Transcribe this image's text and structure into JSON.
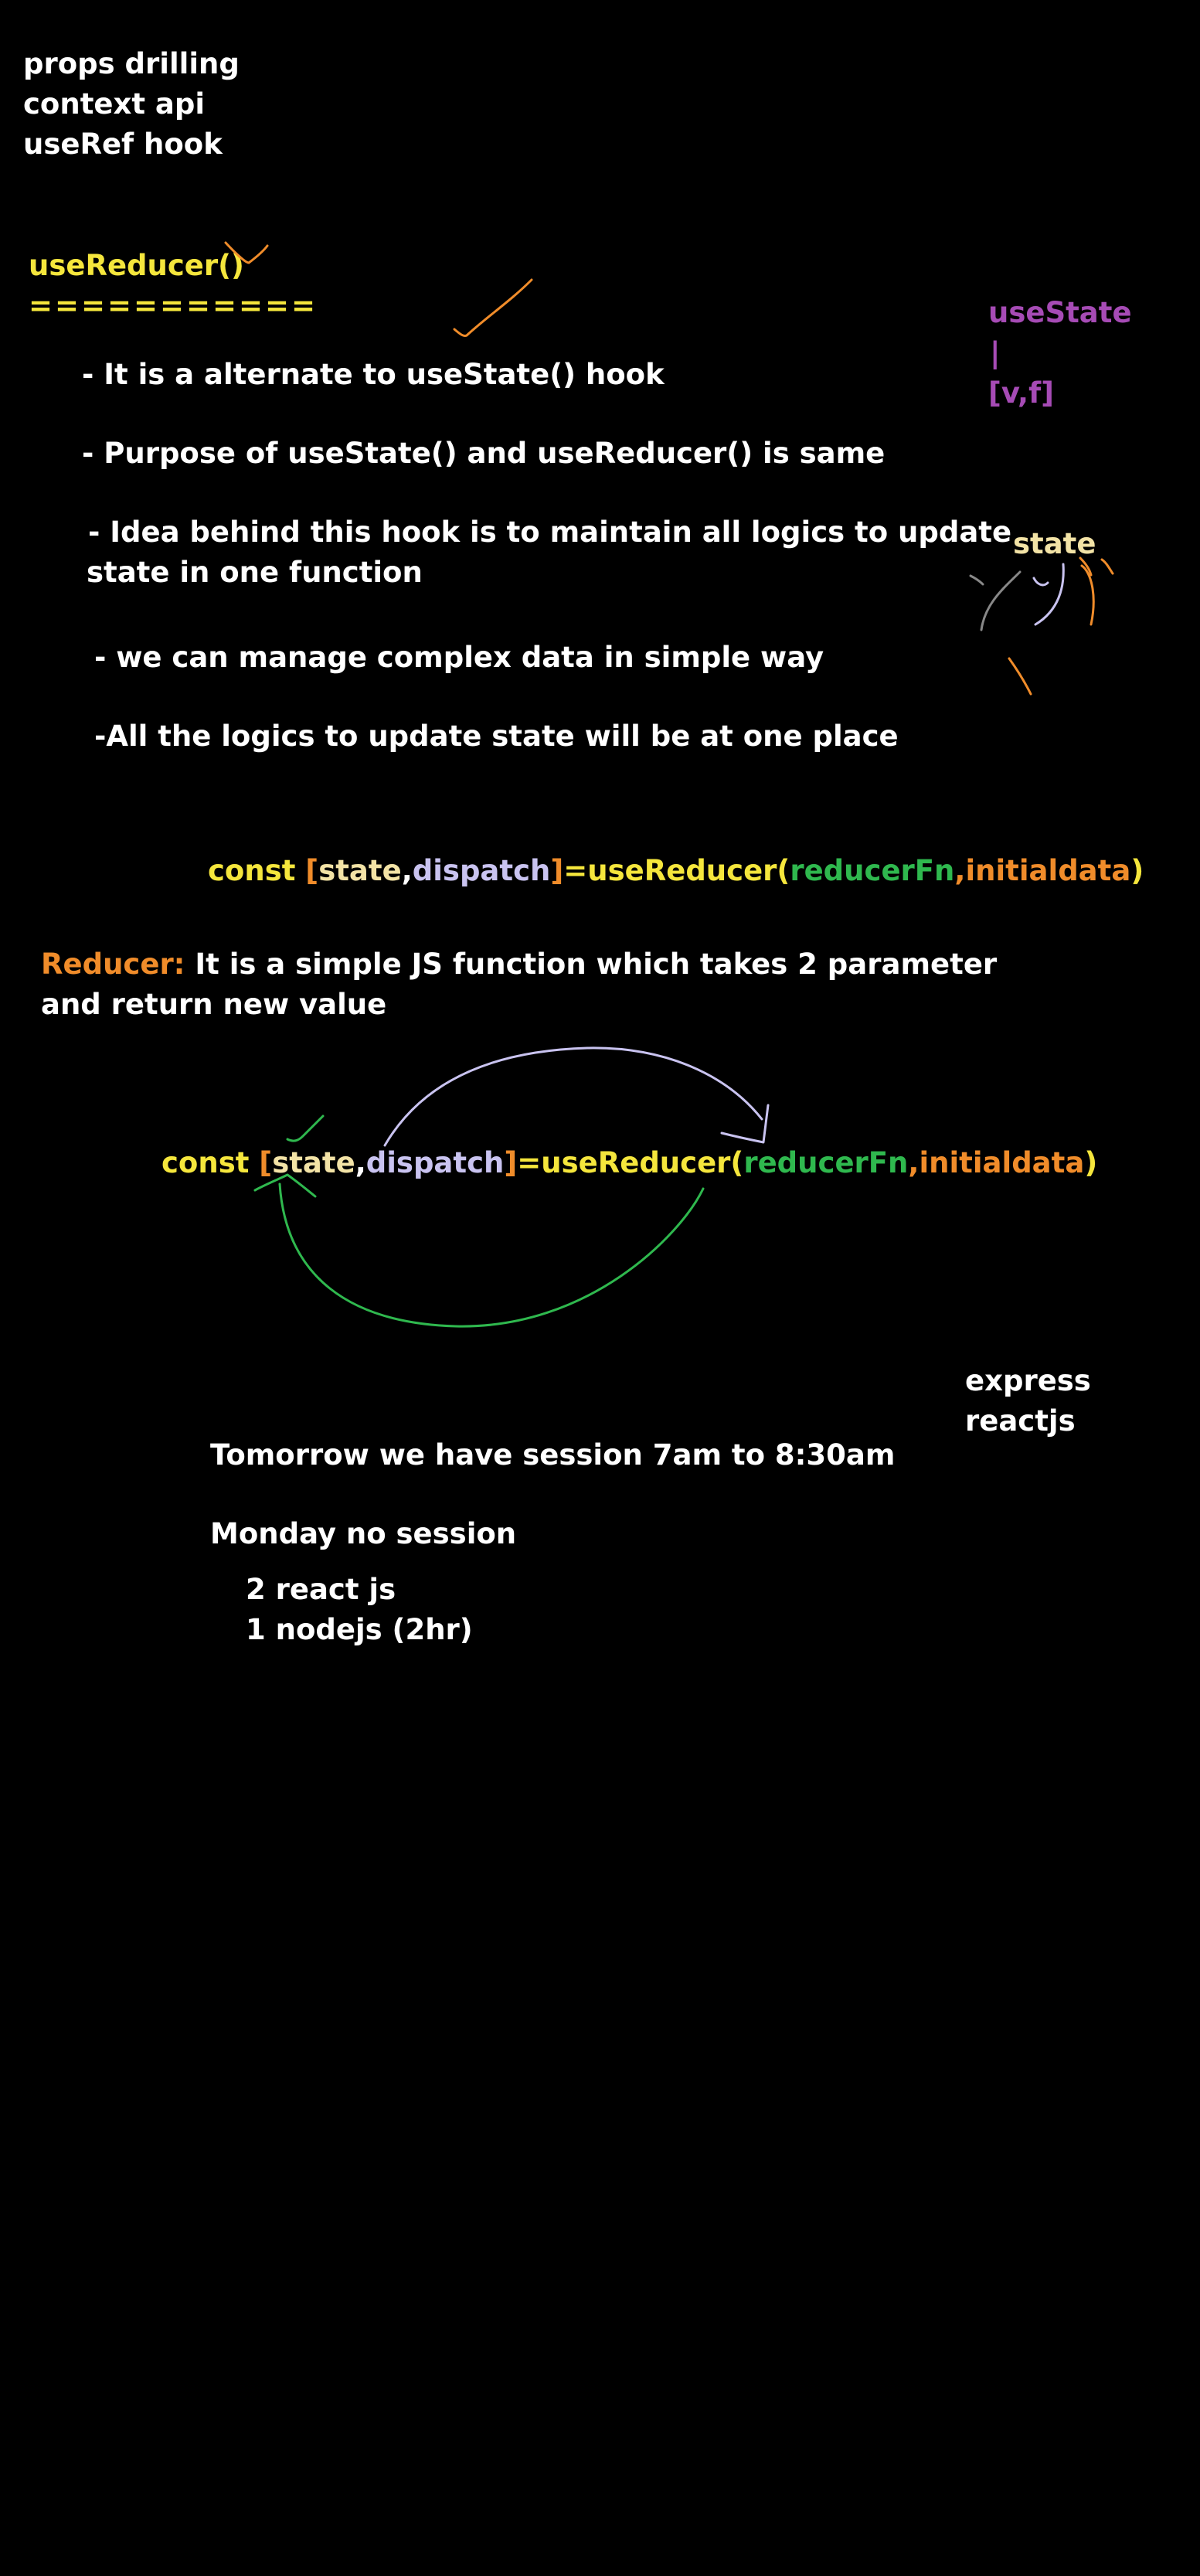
{
  "top_list": [
    "props drilling",
    "context api",
    "useRef hook"
  ],
  "heading": {
    "title": "useReducer()",
    "underline": "==========="
  },
  "bullets": {
    "b1": "- It is a alternate to useState() hook",
    "b2": "- Purpose of useState() and useReducer() is same",
    "b3_line1": "- Idea behind this hook is to maintain all logics to update",
    "b3_line2": "state in one function",
    "b4": "- we can manage complex data in simple way",
    "b5": "-All the logics to update state will be at one place"
  },
  "side_note": {
    "title": "useState",
    "bar": "|",
    "tuple": "[v,f]",
    "state_label": "state"
  },
  "code_line": {
    "const": "const ",
    "open": "[",
    "state": "state",
    "comma1": ",",
    "dispatch": "dispatch",
    "close": "]",
    "eq_fn": "=useReducer(",
    "reducer": "reducerFn",
    "comma2": ",",
    "initial": "initialdata",
    "end": ")"
  },
  "reducer_def": {
    "label": "Reducer:",
    "text_line1": " It is a simple JS function which takes 2 parameter",
    "text_line2": "and return new value"
  },
  "right_list": [
    "express",
    "reactjs"
  ],
  "schedule": {
    "line1": "Tomorrow we have session 7am to 8:30am",
    "line2": "Monday no session",
    "item1": "2 react js",
    "item2": "1 nodejs (2hr)"
  },
  "colors": {
    "background": "#000000",
    "white": "#ffffff",
    "yellow": "#f5e63c",
    "orange": "#f08c2a",
    "lavender": "#c9c3f0",
    "green": "#2fb84e",
    "purple": "#a64bb5",
    "cream": "#f3e3a6"
  }
}
